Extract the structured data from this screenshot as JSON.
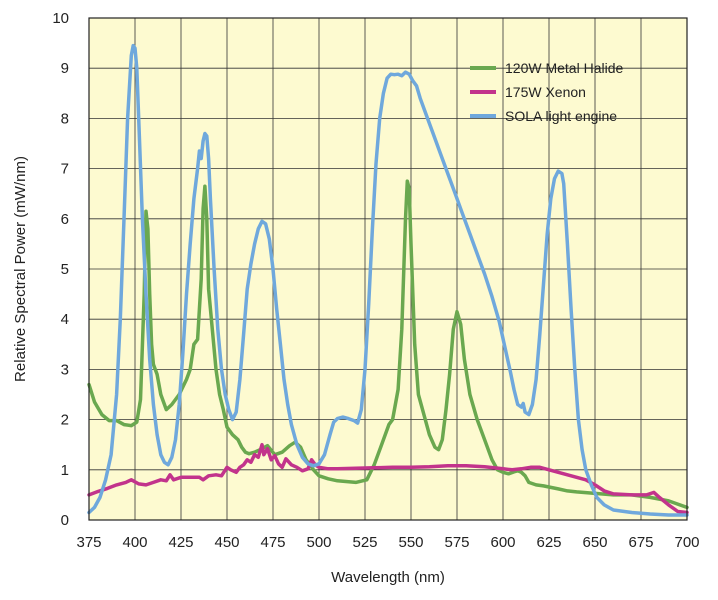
{
  "chart_data": {
    "type": "line",
    "title": "",
    "xlabel": "Wavelength (nm)",
    "ylabel": "Relative Spectral Power (mW/nm)",
    "xlim": [
      375,
      700
    ],
    "ylim": [
      0,
      10
    ],
    "xticks": [
      375,
      400,
      425,
      450,
      475,
      500,
      525,
      550,
      575,
      600,
      625,
      650,
      675,
      700
    ],
    "yticks": [
      0,
      1,
      2,
      3,
      4,
      5,
      6,
      7,
      8,
      9,
      10
    ],
    "grid": true,
    "legend_position": "top-right",
    "background_color": "#fdfad0",
    "series": [
      {
        "name": "120W Metal Halide",
        "color": "#6aa84f",
        "points": [
          [
            375,
            2.7
          ],
          [
            378,
            2.35
          ],
          [
            382,
            2.1
          ],
          [
            386,
            1.98
          ],
          [
            390,
            1.98
          ],
          [
            394,
            1.9
          ],
          [
            398,
            1.88
          ],
          [
            401,
            1.95
          ],
          [
            403,
            2.4
          ],
          [
            405,
            4.5
          ],
          [
            406,
            6.15
          ],
          [
            407,
            5.8
          ],
          [
            408,
            4.5
          ],
          [
            409,
            3.5
          ],
          [
            410,
            3.1
          ],
          [
            412,
            2.9
          ],
          [
            414,
            2.5
          ],
          [
            417,
            2.2
          ],
          [
            420,
            2.3
          ],
          [
            424,
            2.5
          ],
          [
            428,
            2.8
          ],
          [
            430,
            3.0
          ],
          [
            432,
            3.5
          ],
          [
            434,
            3.6
          ],
          [
            436,
            4.8
          ],
          [
            437,
            6.2
          ],
          [
            438,
            6.65
          ],
          [
            439,
            6.0
          ],
          [
            440,
            4.6
          ],
          [
            442,
            3.8
          ],
          [
            444,
            3.0
          ],
          [
            446,
            2.5
          ],
          [
            448,
            2.2
          ],
          [
            450,
            1.85
          ],
          [
            453,
            1.7
          ],
          [
            456,
            1.6
          ],
          [
            458,
            1.45
          ],
          [
            460,
            1.35
          ],
          [
            462,
            1.32
          ],
          [
            465,
            1.35
          ],
          [
            468,
            1.4
          ],
          [
            472,
            1.48
          ],
          [
            476,
            1.3
          ],
          [
            480,
            1.35
          ],
          [
            484,
            1.48
          ],
          [
            487,
            1.55
          ],
          [
            490,
            1.45
          ],
          [
            493,
            1.2
          ],
          [
            497,
            1.0
          ],
          [
            500,
            0.88
          ],
          [
            505,
            0.82
          ],
          [
            510,
            0.78
          ],
          [
            520,
            0.75
          ],
          [
            526,
            0.8
          ],
          [
            530,
            1.1
          ],
          [
            534,
            1.5
          ],
          [
            538,
            1.9
          ],
          [
            540,
            2.0
          ],
          [
            543,
            2.6
          ],
          [
            545,
            3.8
          ],
          [
            547,
            6.0
          ],
          [
            548,
            6.75
          ],
          [
            549,
            6.6
          ],
          [
            550,
            5.5
          ],
          [
            552,
            3.5
          ],
          [
            554,
            2.5
          ],
          [
            557,
            2.1
          ],
          [
            560,
            1.7
          ],
          [
            563,
            1.45
          ],
          [
            565,
            1.4
          ],
          [
            567,
            1.6
          ],
          [
            569,
            2.2
          ],
          [
            571,
            2.9
          ],
          [
            573,
            3.8
          ],
          [
            575,
            4.15
          ],
          [
            577,
            3.9
          ],
          [
            579,
            3.2
          ],
          [
            582,
            2.5
          ],
          [
            586,
            2.0
          ],
          [
            590,
            1.6
          ],
          [
            594,
            1.2
          ],
          [
            597,
            1.0
          ],
          [
            600,
            0.95
          ],
          [
            603,
            0.92
          ],
          [
            606,
            0.96
          ],
          [
            608,
            0.98
          ],
          [
            610,
            0.95
          ],
          [
            612,
            0.88
          ],
          [
            614,
            0.75
          ],
          [
            618,
            0.7
          ],
          [
            622,
            0.68
          ],
          [
            626,
            0.65
          ],
          [
            630,
            0.62
          ],
          [
            635,
            0.58
          ],
          [
            640,
            0.56
          ],
          [
            650,
            0.53
          ],
          [
            660,
            0.5
          ],
          [
            670,
            0.5
          ],
          [
            680,
            0.45
          ],
          [
            690,
            0.38
          ],
          [
            700,
            0.25
          ]
        ]
      },
      {
        "name": "175W Xenon",
        "color": "#c2338c",
        "points": [
          [
            375,
            0.5
          ],
          [
            380,
            0.57
          ],
          [
            385,
            0.63
          ],
          [
            390,
            0.7
          ],
          [
            395,
            0.75
          ],
          [
            398,
            0.8
          ],
          [
            402,
            0.72
          ],
          [
            406,
            0.7
          ],
          [
            410,
            0.75
          ],
          [
            414,
            0.8
          ],
          [
            417,
            0.78
          ],
          [
            419,
            0.9
          ],
          [
            421,
            0.8
          ],
          [
            425,
            0.85
          ],
          [
            430,
            0.85
          ],
          [
            435,
            0.85
          ],
          [
            437,
            0.8
          ],
          [
            440,
            0.88
          ],
          [
            444,
            0.9
          ],
          [
            447,
            0.88
          ],
          [
            450,
            1.05
          ],
          [
            452,
            1.0
          ],
          [
            455,
            0.95
          ],
          [
            457,
            1.05
          ],
          [
            459,
            1.1
          ],
          [
            461,
            1.2
          ],
          [
            463,
            1.15
          ],
          [
            465,
            1.3
          ],
          [
            467,
            1.25
          ],
          [
            469,
            1.5
          ],
          [
            470,
            1.3
          ],
          [
            472,
            1.42
          ],
          [
            474,
            1.2
          ],
          [
            476,
            1.28
          ],
          [
            478,
            1.12
          ],
          [
            480,
            1.05
          ],
          [
            482,
            1.22
          ],
          [
            485,
            1.1
          ],
          [
            488,
            1.05
          ],
          [
            491,
            0.98
          ],
          [
            494,
            1.02
          ],
          [
            496,
            1.2
          ],
          [
            498,
            1.1
          ],
          [
            500,
            1.05
          ],
          [
            505,
            1.02
          ],
          [
            510,
            1.02
          ],
          [
            520,
            1.03
          ],
          [
            530,
            1.04
          ],
          [
            540,
            1.05
          ],
          [
            550,
            1.05
          ],
          [
            560,
            1.06
          ],
          [
            570,
            1.08
          ],
          [
            580,
            1.08
          ],
          [
            590,
            1.06
          ],
          [
            600,
            1.02
          ],
          [
            605,
            1.0
          ],
          [
            610,
            1.02
          ],
          [
            615,
            1.05
          ],
          [
            620,
            1.05
          ],
          [
            625,
            1.0
          ],
          [
            630,
            0.95
          ],
          [
            635,
            0.9
          ],
          [
            640,
            0.85
          ],
          [
            645,
            0.8
          ],
          [
            650,
            0.7
          ],
          [
            655,
            0.58
          ],
          [
            660,
            0.52
          ],
          [
            670,
            0.5
          ],
          [
            678,
            0.5
          ],
          [
            682,
            0.55
          ],
          [
            685,
            0.45
          ],
          [
            690,
            0.3
          ],
          [
            695,
            0.17
          ],
          [
            700,
            0.15
          ]
        ]
      },
      {
        "name": "SOLA light engine",
        "color": "#6fa8dc",
        "points": [
          [
            375,
            0.15
          ],
          [
            378,
            0.25
          ],
          [
            381,
            0.45
          ],
          [
            384,
            0.8
          ],
          [
            387,
            1.3
          ],
          [
            390,
            2.5
          ],
          [
            392,
            4.0
          ],
          [
            394,
            6.0
          ],
          [
            396,
            8.0
          ],
          [
            398,
            9.25
          ],
          [
            399,
            9.45
          ],
          [
            400,
            9.4
          ],
          [
            401,
            9.0
          ],
          [
            402,
            8.0
          ],
          [
            404,
            6.0
          ],
          [
            406,
            4.5
          ],
          [
            408,
            3.2
          ],
          [
            410,
            2.3
          ],
          [
            412,
            1.7
          ],
          [
            414,
            1.3
          ],
          [
            416,
            1.15
          ],
          [
            418,
            1.1
          ],
          [
            420,
            1.25
          ],
          [
            422,
            1.6
          ],
          [
            424,
            2.3
          ],
          [
            426,
            3.3
          ],
          [
            428,
            4.5
          ],
          [
            430,
            5.5
          ],
          [
            432,
            6.4
          ],
          [
            434,
            7.0
          ],
          [
            435,
            7.35
          ],
          [
            436,
            7.2
          ],
          [
            437,
            7.55
          ],
          [
            438,
            7.7
          ],
          [
            439,
            7.65
          ],
          [
            440,
            7.2
          ],
          [
            441,
            6.4
          ],
          [
            443,
            5.0
          ],
          [
            445,
            3.8
          ],
          [
            447,
            3.0
          ],
          [
            449,
            2.5
          ],
          [
            451,
            2.2
          ],
          [
            453,
            2.0
          ],
          [
            455,
            2.15
          ],
          [
            457,
            2.8
          ],
          [
            459,
            3.7
          ],
          [
            461,
            4.6
          ],
          [
            463,
            5.1
          ],
          [
            465,
            5.5
          ],
          [
            467,
            5.8
          ],
          [
            469,
            5.95
          ],
          [
            471,
            5.9
          ],
          [
            473,
            5.6
          ],
          [
            475,
            5.0
          ],
          [
            477,
            4.2
          ],
          [
            479,
            3.5
          ],
          [
            481,
            2.8
          ],
          [
            483,
            2.3
          ],
          [
            485,
            1.9
          ],
          [
            488,
            1.5
          ],
          [
            491,
            1.25
          ],
          [
            494,
            1.12
          ],
          [
            497,
            1.08
          ],
          [
            500,
            1.12
          ],
          [
            503,
            1.3
          ],
          [
            506,
            1.7
          ],
          [
            508,
            1.95
          ],
          [
            510,
            2.02
          ],
          [
            513,
            2.05
          ],
          [
            516,
            2.02
          ],
          [
            519,
            1.98
          ],
          [
            521,
            1.93
          ],
          [
            523,
            2.2
          ],
          [
            525,
            3.0
          ],
          [
            527,
            4.3
          ],
          [
            529,
            5.8
          ],
          [
            531,
            7.1
          ],
          [
            533,
            8.0
          ],
          [
            535,
            8.5
          ],
          [
            537,
            8.8
          ],
          [
            539,
            8.88
          ],
          [
            541,
            8.87
          ],
          [
            543,
            8.88
          ],
          [
            545,
            8.85
          ],
          [
            547,
            8.92
          ],
          [
            549,
            8.88
          ],
          [
            551,
            8.75
          ],
          [
            553,
            8.65
          ],
          [
            555,
            8.4
          ],
          [
            558,
            8.1
          ],
          [
            562,
            7.7
          ],
          [
            566,
            7.3
          ],
          [
            570,
            6.9
          ],
          [
            574,
            6.5
          ],
          [
            578,
            6.1
          ],
          [
            582,
            5.7
          ],
          [
            586,
            5.3
          ],
          [
            590,
            4.9
          ],
          [
            594,
            4.45
          ],
          [
            598,
            3.95
          ],
          [
            601,
            3.45
          ],
          [
            604,
            2.95
          ],
          [
            606,
            2.6
          ],
          [
            608,
            2.3
          ],
          [
            610,
            2.25
          ],
          [
            611,
            2.32
          ],
          [
            612,
            2.15
          ],
          [
            614,
            2.1
          ],
          [
            616,
            2.3
          ],
          [
            618,
            2.8
          ],
          [
            620,
            3.7
          ],
          [
            622,
            4.7
          ],
          [
            624,
            5.7
          ],
          [
            626,
            6.4
          ],
          [
            628,
            6.8
          ],
          [
            630,
            6.95
          ],
          [
            632,
            6.9
          ],
          [
            633,
            6.7
          ],
          [
            635,
            5.5
          ],
          [
            637,
            4.2
          ],
          [
            639,
            3.0
          ],
          [
            641,
            2.0
          ],
          [
            643,
            1.4
          ],
          [
            645,
            1.0
          ],
          [
            648,
            0.7
          ],
          [
            651,
            0.45
          ],
          [
            655,
            0.3
          ],
          [
            660,
            0.2
          ],
          [
            670,
            0.15
          ],
          [
            680,
            0.12
          ],
          [
            690,
            0.1
          ],
          [
            700,
            0.1
          ]
        ]
      }
    ]
  }
}
